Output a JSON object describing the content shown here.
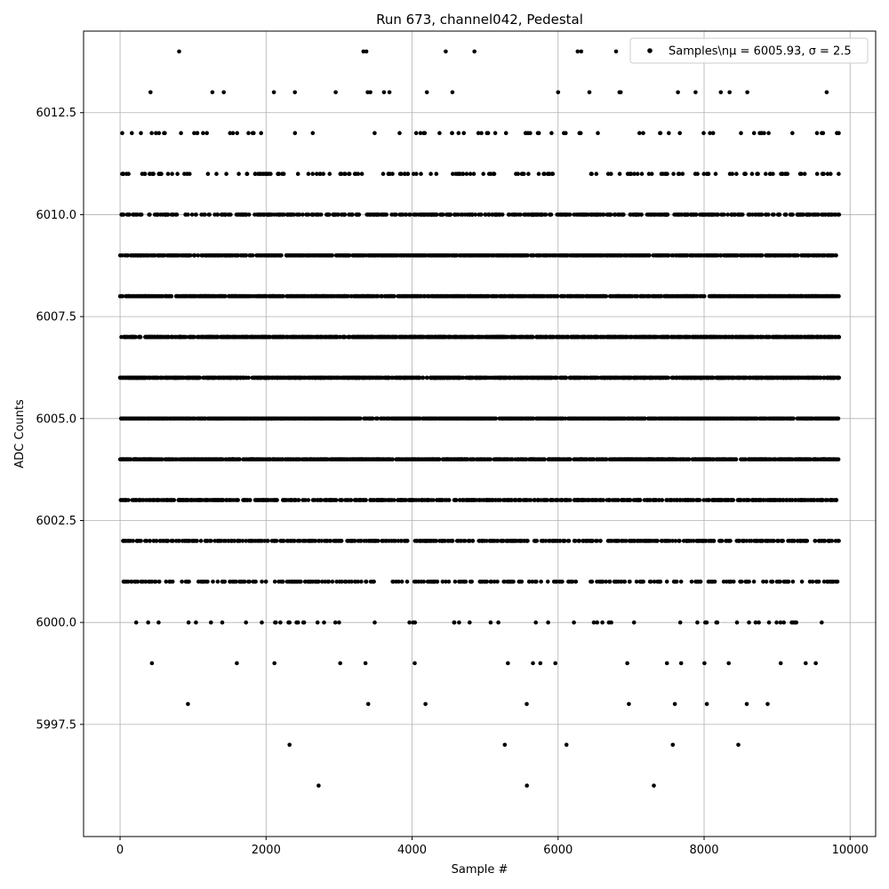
{
  "chart_data": {
    "type": "scatter",
    "title": "Run 673, channel042, Pedestal",
    "xlabel": "Sample #",
    "ylabel": "ADC Counts",
    "xlim": [
      -500,
      10350
    ],
    "ylim": [
      5994.75,
      6014.5
    ],
    "x_ticks": [
      0,
      2000,
      4000,
      6000,
      8000,
      10000
    ],
    "x_tick_labels": [
      "0",
      "2000",
      "4000",
      "6000",
      "8000",
      "10000"
    ],
    "y_ticks": [
      5997.5,
      6000.0,
      6002.5,
      6005.0,
      6007.5,
      6010.0,
      6012.5
    ],
    "y_tick_labels": [
      "5997.5",
      "6000.0",
      "6002.5",
      "6005.0",
      "6007.5",
      "6010.0",
      "6012.5"
    ],
    "grid": true,
    "legend_position": "top-right",
    "legend_label_prefix": "Samples\\n",
    "legend_label_main": "μ = 6005.93, σ = 2.5",
    "marker_color": "#000000",
    "series": [
      {
        "name": "Samples\\nμ = 6005.93, σ = 2.5",
        "level_counts": [
          {
            "y": 5996,
            "count": 3
          },
          {
            "y": 5997,
            "count": 5
          },
          {
            "y": 5998,
            "count": 9
          },
          {
            "y": 5999,
            "count": 18
          },
          {
            "y": 6000,
            "count": 60
          },
          {
            "y": 6001,
            "count": 310
          },
          {
            "y": 6002,
            "count": 520
          },
          {
            "y": 6003,
            "count": 760
          },
          {
            "y": 6004,
            "count": 1150
          },
          {
            "y": 6005,
            "count": 1400
          },
          {
            "y": 6006,
            "count": 1450
          },
          {
            "y": 6007,
            "count": 1350
          },
          {
            "y": 6008,
            "count": 1100
          },
          {
            "y": 6009,
            "count": 1000
          },
          {
            "y": 6010,
            "count": 560
          },
          {
            "y": 6011,
            "count": 170
          },
          {
            "y": 6012,
            "count": 75
          },
          {
            "y": 6013,
            "count": 22
          },
          {
            "y": 6014,
            "count": 9
          }
        ],
        "x_range": [
          0,
          9850
        ]
      }
    ]
  }
}
